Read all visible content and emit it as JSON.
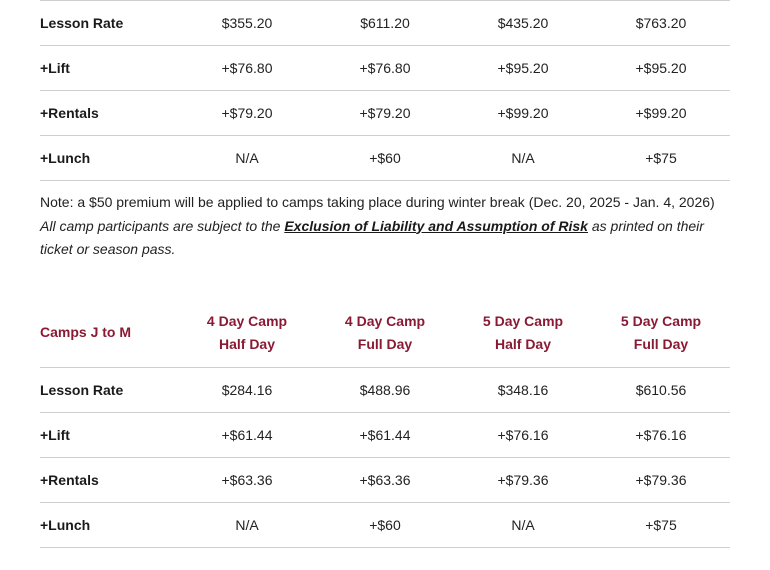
{
  "table1": {
    "rows": [
      {
        "label": "Lesson Rate",
        "values": [
          "$355.20",
          "$611.20",
          "$435.20",
          "$763.20"
        ]
      },
      {
        "label": "+Lift",
        "values": [
          "+$76.80",
          "+$76.80",
          "+$95.20",
          "+$95.20"
        ]
      },
      {
        "label": "+Rentals",
        "values": [
          "+$79.20",
          "+$79.20",
          "+$99.20",
          "+$99.20"
        ]
      },
      {
        "label": "+Lunch",
        "values": [
          "N/A",
          "+$60",
          "N/A",
          "+$75"
        ]
      }
    ]
  },
  "note": {
    "line1": "Note: a $50 premium will be applied to camps taking place during winter break (Dec. 20, 2025 - Jan. 4, 2026)",
    "line2_before": "All camp participants are subject to the ",
    "line2_link": "Exclusion of Liability and Assumption of Risk",
    "line2_after": " as printed on their ticket or season pass."
  },
  "table2": {
    "title": "Camps J to M",
    "headers": [
      {
        "line1": "4 Day Camp",
        "line2": "Half Day"
      },
      {
        "line1": "4 Day Camp",
        "line2": "Full Day"
      },
      {
        "line1": "5 Day Camp",
        "line2": "Half Day"
      },
      {
        "line1": "5 Day Camp",
        "line2": "Full Day"
      }
    ],
    "rows": [
      {
        "label": "Lesson Rate",
        "values": [
          "$284.16",
          "$488.96",
          "$348.16",
          "$610.56"
        ]
      },
      {
        "label": "+Lift",
        "values": [
          "+$61.44",
          "+$61.44",
          "+$76.16",
          "+$76.16"
        ]
      },
      {
        "label": "+Rentals",
        "values": [
          "+$63.36",
          "+$63.36",
          "+$79.36",
          "+$79.36"
        ]
      },
      {
        "label": "+Lunch",
        "values": [
          "N/A",
          "+$60",
          "N/A",
          "+$75"
        ]
      }
    ]
  },
  "colors": {
    "header_accent": "#8a1a33",
    "divider": "#cfcfcf"
  }
}
